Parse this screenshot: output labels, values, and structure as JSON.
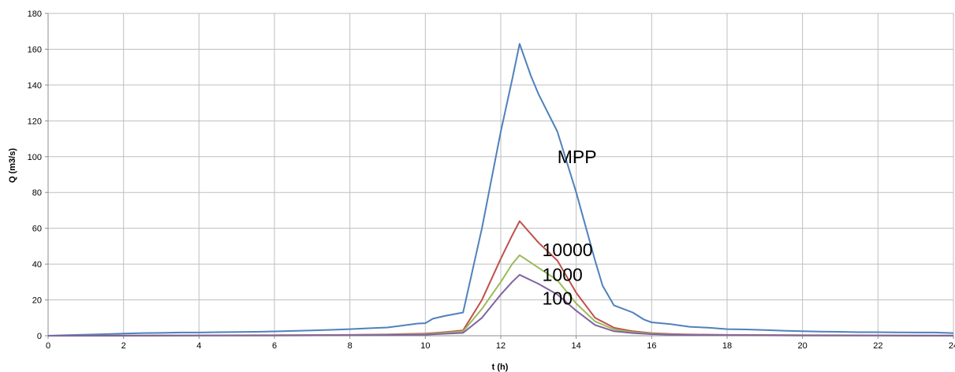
{
  "chart_data": {
    "type": "line",
    "title": "",
    "xlabel": "t (h)",
    "ylabel": "Q (m3/s)",
    "xlim": [
      0,
      24
    ],
    "ylim": [
      0,
      180
    ],
    "xticks": [
      0,
      2,
      4,
      6,
      8,
      10,
      12,
      14,
      16,
      18,
      20,
      22,
      24
    ],
    "yticks": [
      0,
      20,
      40,
      60,
      80,
      100,
      120,
      140,
      160,
      180
    ],
    "grid": true,
    "legend": "none",
    "series": [
      {
        "name": "MPP",
        "color": "#4f81bd",
        "points": [
          [
            0,
            0
          ],
          [
            0.5,
            0.3
          ],
          [
            1,
            0.6
          ],
          [
            1.5,
            0.9
          ],
          [
            2,
            1.2
          ],
          [
            2.5,
            1.5
          ],
          [
            3,
            1.6
          ],
          [
            3.5,
            1.8
          ],
          [
            4,
            1.8
          ],
          [
            4.5,
            2
          ],
          [
            5,
            2.1
          ],
          [
            5.5,
            2.2
          ],
          [
            6,
            2.4
          ],
          [
            6.5,
            2.7
          ],
          [
            7,
            3
          ],
          [
            7.5,
            3.3
          ],
          [
            8,
            3.7
          ],
          [
            8.5,
            4.2
          ],
          [
            9,
            4.6
          ],
          [
            9.5,
            6
          ],
          [
            9.8,
            6.8
          ],
          [
            10,
            7
          ],
          [
            10.2,
            9.5
          ],
          [
            10.5,
            11
          ],
          [
            11,
            13
          ],
          [
            11.5,
            60
          ],
          [
            12,
            114
          ],
          [
            12.3,
            143
          ],
          [
            12.5,
            163
          ],
          [
            12.8,
            145
          ],
          [
            13,
            135
          ],
          [
            13.5,
            114
          ],
          [
            14,
            80
          ],
          [
            14.5,
            42
          ],
          [
            14.7,
            28
          ],
          [
            15,
            17
          ],
          [
            15.5,
            13
          ],
          [
            15.8,
            9
          ],
          [
            16,
            7.5
          ],
          [
            16.5,
            6.5
          ],
          [
            17,
            5
          ],
          [
            17.5,
            4.5
          ],
          [
            18,
            3.7
          ],
          [
            18.5,
            3.5
          ],
          [
            19,
            3.2
          ],
          [
            19.5,
            2.8
          ],
          [
            20,
            2.5
          ],
          [
            20.5,
            2.3
          ],
          [
            21,
            2.2
          ],
          [
            21.5,
            2
          ],
          [
            22,
            2
          ],
          [
            22.5,
            1.9
          ],
          [
            23,
            1.8
          ],
          [
            23.5,
            1.8
          ],
          [
            24,
            1.5
          ]
        ]
      },
      {
        "name": "10000",
        "color": "#c0504d",
        "points": [
          [
            0,
            0
          ],
          [
            2,
            0.1
          ],
          [
            4,
            0.2
          ],
          [
            6,
            0.3
          ],
          [
            8,
            0.5
          ],
          [
            9,
            0.8
          ],
          [
            10,
            1.2
          ],
          [
            10.5,
            2
          ],
          [
            11,
            3
          ],
          [
            11.5,
            20
          ],
          [
            12,
            43
          ],
          [
            12.3,
            56
          ],
          [
            12.5,
            64
          ],
          [
            13,
            52
          ],
          [
            13.5,
            42
          ],
          [
            14,
            24
          ],
          [
            14.5,
            10
          ],
          [
            15,
            4.5
          ],
          [
            15.5,
            2.5
          ],
          [
            16,
            1.5
          ],
          [
            16.5,
            1
          ],
          [
            17,
            0.7
          ],
          [
            18,
            0.5
          ],
          [
            20,
            0.3
          ],
          [
            22,
            0.2
          ],
          [
            24,
            0.1
          ]
        ]
      },
      {
        "name": "1000",
        "color": "#9bbb59",
        "points": [
          [
            0,
            0
          ],
          [
            2,
            0.1
          ],
          [
            4,
            0.1
          ],
          [
            6,
            0.2
          ],
          [
            8,
            0.4
          ],
          [
            9,
            0.6
          ],
          [
            10,
            0.9
          ],
          [
            10.5,
            1.6
          ],
          [
            11,
            2.4
          ],
          [
            11.5,
            15
          ],
          [
            12,
            30
          ],
          [
            12.3,
            40
          ],
          [
            12.5,
            45
          ],
          [
            13,
            38
          ],
          [
            13.5,
            31
          ],
          [
            14,
            18
          ],
          [
            14.5,
            8
          ],
          [
            15,
            3.5
          ],
          [
            15.5,
            2
          ],
          [
            16,
            1.2
          ],
          [
            16.5,
            0.8
          ],
          [
            17,
            0.5
          ],
          [
            18,
            0.4
          ],
          [
            20,
            0.2
          ],
          [
            22,
            0.1
          ],
          [
            24,
            0.1
          ]
        ]
      },
      {
        "name": "100",
        "color": "#8064a2",
        "points": [
          [
            0,
            0
          ],
          [
            2,
            0
          ],
          [
            4,
            0.1
          ],
          [
            6,
            0.1
          ],
          [
            8,
            0.3
          ],
          [
            9,
            0.4
          ],
          [
            10,
            0.6
          ],
          [
            10.5,
            1.1
          ],
          [
            11,
            1.6
          ],
          [
            11.5,
            10
          ],
          [
            12,
            23
          ],
          [
            12.3,
            30
          ],
          [
            12.5,
            34
          ],
          [
            13,
            29
          ],
          [
            13.5,
            23
          ],
          [
            14,
            14
          ],
          [
            14.5,
            6
          ],
          [
            15,
            2.5
          ],
          [
            15.5,
            1.5
          ],
          [
            16,
            0.9
          ],
          [
            16.5,
            0.6
          ],
          [
            17,
            0.4
          ],
          [
            18,
            0.3
          ],
          [
            20,
            0.1
          ],
          [
            22,
            0.1
          ],
          [
            24,
            0
          ]
        ]
      }
    ],
    "annotations": [
      {
        "text": "MPP",
        "x": 13.5,
        "y": 100
      },
      {
        "text": "10000",
        "x": 13.1,
        "y": 48
      },
      {
        "text": "1000",
        "x": 13.1,
        "y": 34
      },
      {
        "text": "100",
        "x": 13.1,
        "y": 21
      }
    ]
  }
}
